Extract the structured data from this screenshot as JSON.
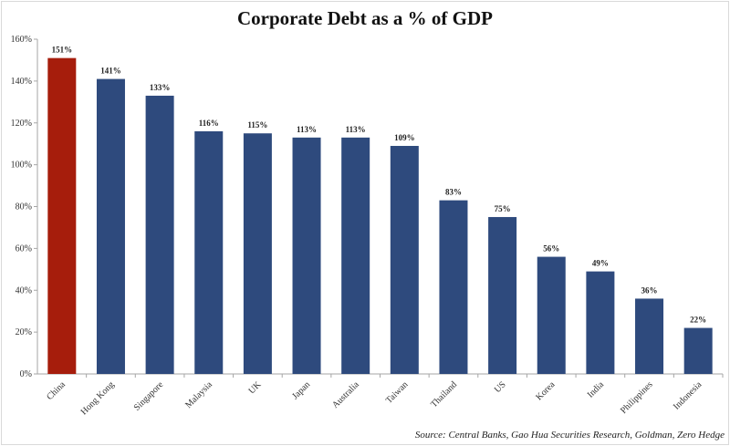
{
  "chart_data": {
    "type": "bar",
    "title": "Corporate Debt as a % of GDP",
    "source": "Source: Central Banks, Gao Hua Securities Research, Goldman, Zero Hedge",
    "categories": [
      "China",
      "Hong Kong",
      "Singapore",
      "Malaysia",
      "UK",
      "Japan",
      "Australia",
      "Taiwan",
      "Thailand",
      "US",
      "Korea",
      "India",
      "Philippines",
      "Indonesia"
    ],
    "values": [
      151,
      141,
      133,
      116,
      115,
      113,
      113,
      109,
      83,
      75,
      56,
      49,
      36,
      22
    ],
    "data_labels": [
      "151%",
      "141%",
      "133%",
      "116%",
      "115%",
      "113%",
      "113%",
      "109%",
      "83%",
      "75%",
      "56%",
      "49%",
      "36%",
      "22%"
    ],
    "ylim": [
      0,
      160
    ],
    "yticks": [
      0,
      20,
      40,
      60,
      80,
      100,
      120,
      140,
      160
    ],
    "ytick_labels": [
      "0%",
      "20%",
      "40%",
      "60%",
      "80%",
      "100%",
      "120%",
      "140%",
      "160%"
    ],
    "xlabel": "",
    "ylabel": "",
    "grid": false,
    "colors": {
      "highlight": "#a61d0c",
      "default": "#2e4a7d",
      "axis": "#a6a6a6"
    }
  }
}
